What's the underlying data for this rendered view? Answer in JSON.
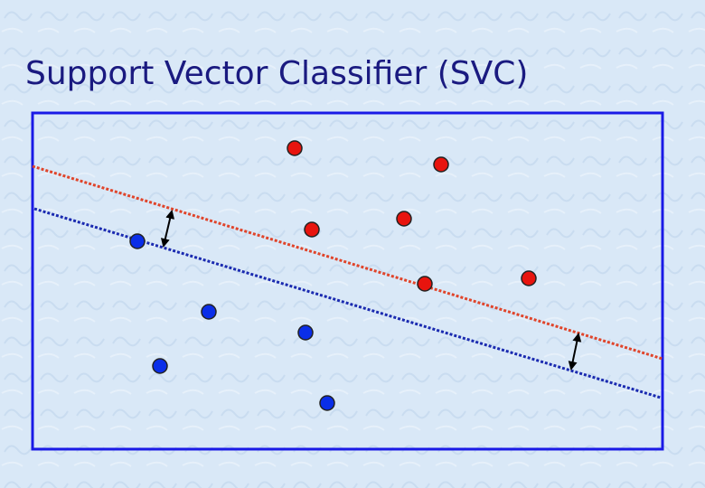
{
  "header": {
    "title": "Support Vector Classifier (SVC)"
  }
}
